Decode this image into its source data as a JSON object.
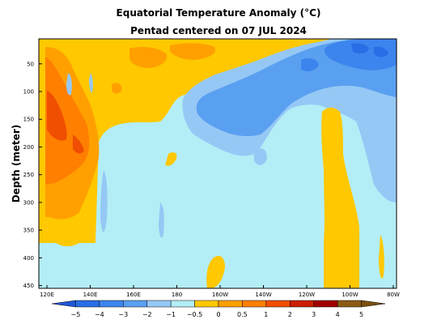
{
  "chart_data": {
    "type": "heatmap",
    "title": "Equatorial Temperature Anomaly (°C)",
    "subtitle": "Pentad centered on 07 JUL 2024",
    "xlabel": "",
    "ylabel": "Depth (meter)",
    "x_ticks": [
      "120E",
      "140E",
      "160E",
      "180",
      "160W",
      "140W",
      "120W",
      "100W",
      "80W"
    ],
    "x_tick_values": [
      120,
      140,
      160,
      180,
      200,
      220,
      240,
      260,
      280
    ],
    "xlim": [
      120,
      280
    ],
    "y_ticks": [
      50,
      100,
      150,
      200,
      250,
      300,
      350,
      400,
      450
    ],
    "ylim": [
      455,
      5
    ],
    "y_inverted": true,
    "colorbar": {
      "levels": [
        -5,
        -4,
        -3,
        -2,
        -1,
        -0.5,
        0,
        0.5,
        1,
        2,
        3,
        4,
        5
      ],
      "labels": [
        "−5",
        "−4",
        "−3",
        "−2",
        "−1",
        "−0.5",
        "0",
        "0.5",
        "1",
        "2",
        "3",
        "4",
        "5"
      ],
      "colors": [
        "#1e58d8",
        "#2a6ee6",
        "#3c85ee",
        "#5aa0f0",
        "#96c8f5",
        "#b3eef6",
        "#ffc800",
        "#ffa000",
        "#ff7f00",
        "#f04e00",
        "#cc1e00",
        "#a00000",
        "#8c5c14",
        "#7a5010"
      ]
    },
    "regions": [
      {
        "anomaly": "0 to 0.5",
        "x": [
          132,
          280
        ],
        "depth": [
          5,
          95
        ]
      },
      {
        "anomaly": "1 to 2",
        "x": [
          121,
          128
        ],
        "depth": [
          45,
          270
        ]
      },
      {
        "anomaly": "2 to 3",
        "x": [
          121,
          126
        ],
        "depth": [
          110,
          200
        ]
      },
      {
        "anomaly": "-1 to -0.5",
        "x": [
          200,
          255
        ],
        "depth": [
          60,
          200
        ]
      },
      {
        "anomaly": "-2 to -1",
        "x": [
          205,
          232
        ],
        "depth": [
          105,
          165
        ]
      },
      {
        "anomaly": "-3 to -2",
        "x": [
          245,
          270
        ],
        "depth": [
          15,
          65
        ]
      },
      {
        "anomaly": "0 to 0.5",
        "x": [
          250,
          262
        ],
        "depth": [
          140,
          455
        ]
      }
    ]
  }
}
